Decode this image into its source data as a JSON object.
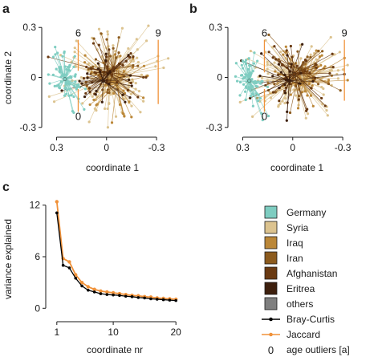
{
  "panels": {
    "a": {
      "letter": "a"
    },
    "b": {
      "letter": "b"
    },
    "c": {
      "letter": "c"
    }
  },
  "colors": {
    "Germany": "#7ecdc1",
    "Syria": "#dcc38f",
    "Iraq": "#bb8738",
    "Iran": "#8c5b1e",
    "Afghanistan": "#6a3a12",
    "Eritrea": "#3d1f0d",
    "others": "#7f7f7f",
    "bray": "#000000",
    "jaccard": "#f0923a",
    "outlier": "#f0923a",
    "axis": "#1a1a1a"
  },
  "chart_data": [
    {
      "id": "a",
      "type": "scatter",
      "title": "",
      "xlabel": "coordinate 1",
      "ylabel": "coordinate 2",
      "xlim": [
        0.36,
        -0.42
      ],
      "ylim": [
        -0.33,
        0.33
      ],
      "xticks": [
        {
          "v": 0.3,
          "label": "0.3"
        },
        {
          "v": 0,
          "label": "0"
        },
        {
          "v": -0.3,
          "label": "-0.3"
        }
      ],
      "yticks": [
        {
          "v": 0.3,
          "label": "0.3"
        },
        {
          "v": 0,
          "label": "0"
        },
        {
          "v": -0.3,
          "label": "-0.3"
        }
      ],
      "description": "star-shaped ordination: samples connected to group centroids",
      "centroids": [
        {
          "group": "Germany",
          "x": 0.25,
          "y": -0.01
        },
        {
          "group": "Syria",
          "x": -0.02,
          "y": 0.0
        },
        {
          "group": "Iraq",
          "x": -0.06,
          "y": -0.04
        },
        {
          "group": "Iran",
          "x": -0.04,
          "y": 0.05
        },
        {
          "group": "Afghanistan",
          "x": -0.01,
          "y": 0.03
        },
        {
          "group": "Eritrea",
          "x": 0.02,
          "y": -0.02
        }
      ],
      "outliers": [
        {
          "label": "6",
          "x": 0.17,
          "y": 0.245,
          "line_to_y": 0.04
        },
        {
          "label": "9",
          "x": -0.31,
          "y": 0.245,
          "line_to_y": -0.16
        },
        {
          "label": "0",
          "x": 0.17,
          "y": -0.255,
          "line_to_y": -0.07
        }
      ]
    },
    {
      "id": "b",
      "type": "scatter",
      "title": "",
      "xlabel": "coordinate 1",
      "ylabel": "",
      "xlim": [
        0.36,
        -0.42
      ],
      "ylim": [
        -0.33,
        0.33
      ],
      "xticks": [
        {
          "v": 0.3,
          "label": "0.3"
        },
        {
          "v": 0,
          "label": "0"
        },
        {
          "v": -0.3,
          "label": "-0.3"
        }
      ],
      "yticks": [
        {
          "v": 0.3,
          "label": "0.3"
        },
        {
          "v": 0,
          "label": "0"
        },
        {
          "v": -0.3,
          "label": "-0.3"
        }
      ],
      "centroids": [
        {
          "group": "Germany",
          "x": 0.26,
          "y": -0.02
        },
        {
          "group": "Syria",
          "x": -0.02,
          "y": 0.0
        },
        {
          "group": "Iraq",
          "x": -0.06,
          "y": -0.03
        },
        {
          "group": "Iran",
          "x": -0.04,
          "y": 0.05
        },
        {
          "group": "Afghanistan",
          "x": -0.01,
          "y": 0.02
        },
        {
          "group": "Eritrea",
          "x": 0.02,
          "y": -0.02
        }
      ],
      "outliers": [
        {
          "label": "6",
          "x": 0.17,
          "y": 0.245,
          "line_to_y": 0.03
        },
        {
          "label": "9",
          "x": -0.31,
          "y": 0.245,
          "line_to_y": -0.14
        },
        {
          "label": "0",
          "x": 0.17,
          "y": -0.255,
          "line_to_y": -0.07
        }
      ]
    },
    {
      "id": "c",
      "type": "line",
      "title": "",
      "xlabel": "coordinate nr",
      "ylabel": "variance explained",
      "xlim": [
        0,
        21
      ],
      "ylim": [
        -1,
        13
      ],
      "xticks": [
        {
          "v": 1,
          "label": "1"
        },
        {
          "v": 10,
          "label": "10"
        },
        {
          "v": 20,
          "label": "20"
        }
      ],
      "yticks": [
        {
          "v": 0,
          "label": "0"
        },
        {
          "v": 6,
          "label": "6"
        },
        {
          "v": 12,
          "label": "12"
        }
      ],
      "x": [
        1,
        2,
        3,
        4,
        5,
        6,
        7,
        8,
        9,
        10,
        11,
        12,
        13,
        14,
        15,
        16,
        17,
        18,
        19,
        20
      ],
      "series": [
        {
          "name": "Jaccard",
          "color": "#f0923a",
          "values": [
            12.4,
            5.8,
            5.4,
            3.9,
            3.0,
            2.5,
            2.2,
            2.0,
            1.9,
            1.8,
            1.7,
            1.6,
            1.5,
            1.45,
            1.35,
            1.3,
            1.2,
            1.15,
            1.1,
            1.05
          ]
        },
        {
          "name": "Bray-Curtis",
          "color": "#000000",
          "values": [
            11.1,
            5.0,
            4.7,
            3.5,
            2.6,
            2.1,
            1.9,
            1.7,
            1.6,
            1.55,
            1.5,
            1.4,
            1.35,
            1.25,
            1.2,
            1.1,
            1.05,
            1.0,
            0.95,
            0.9
          ]
        }
      ]
    }
  ],
  "legend": {
    "items": [
      {
        "label": "Germany",
        "kind": "box",
        "color": "#7ecdc1"
      },
      {
        "label": "Syria",
        "kind": "box",
        "color": "#dcc38f"
      },
      {
        "label": "Iraq",
        "kind": "box",
        "color": "#bb8738"
      },
      {
        "label": "Iran",
        "kind": "box",
        "color": "#8c5b1e"
      },
      {
        "label": "Afghanistan",
        "kind": "box",
        "color": "#6a3a12"
      },
      {
        "label": "Eritrea",
        "kind": "box",
        "color": "#3d1f0d"
      },
      {
        "label": "others",
        "kind": "box",
        "color": "#7f7f7f"
      },
      {
        "label": "Bray-Curtis",
        "kind": "line",
        "color": "#000000"
      },
      {
        "label": "Jaccard",
        "kind": "line",
        "color": "#f0923a"
      },
      {
        "label": "age outliers [a]",
        "kind": "text",
        "symbol": "0",
        "color": "#f0923a"
      }
    ]
  }
}
